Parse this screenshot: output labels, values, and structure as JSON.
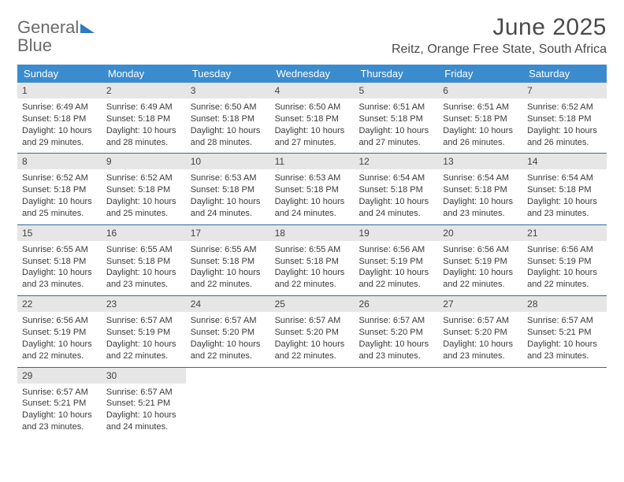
{
  "logo": {
    "text1": "General",
    "text2": "Blue"
  },
  "header": {
    "month_title": "June 2025",
    "location": "Reitz, Orange Free State, South Africa"
  },
  "colors": {
    "header_bg": "#3b8bcf",
    "header_fg": "#ffffff",
    "daynum_bg": "#e6e6e6",
    "daynum_fg": "#444444",
    "week_divider": "#2e6ba3",
    "body_text": "#3a3a3a",
    "title_text": "#4a4a4a",
    "logo_gray": "#6b6b6b",
    "logo_blue": "#2e7cc2"
  },
  "typography": {
    "month_title_size": 30,
    "location_size": 16,
    "dow_size": 13,
    "daynum_size": 12,
    "body_size": 11
  },
  "calendar": {
    "days_of_week": [
      "Sunday",
      "Monday",
      "Tuesday",
      "Wednesday",
      "Thursday",
      "Friday",
      "Saturday"
    ],
    "weeks": [
      [
        {
          "n": "1",
          "sunrise": "Sunrise: 6:49 AM",
          "sunset": "Sunset: 5:18 PM",
          "daylight": "Daylight: 10 hours and 29 minutes."
        },
        {
          "n": "2",
          "sunrise": "Sunrise: 6:49 AM",
          "sunset": "Sunset: 5:18 PM",
          "daylight": "Daylight: 10 hours and 28 minutes."
        },
        {
          "n": "3",
          "sunrise": "Sunrise: 6:50 AM",
          "sunset": "Sunset: 5:18 PM",
          "daylight": "Daylight: 10 hours and 28 minutes."
        },
        {
          "n": "4",
          "sunrise": "Sunrise: 6:50 AM",
          "sunset": "Sunset: 5:18 PM",
          "daylight": "Daylight: 10 hours and 27 minutes."
        },
        {
          "n": "5",
          "sunrise": "Sunrise: 6:51 AM",
          "sunset": "Sunset: 5:18 PM",
          "daylight": "Daylight: 10 hours and 27 minutes."
        },
        {
          "n": "6",
          "sunrise": "Sunrise: 6:51 AM",
          "sunset": "Sunset: 5:18 PM",
          "daylight": "Daylight: 10 hours and 26 minutes."
        },
        {
          "n": "7",
          "sunrise": "Sunrise: 6:52 AM",
          "sunset": "Sunset: 5:18 PM",
          "daylight": "Daylight: 10 hours and 26 minutes."
        }
      ],
      [
        {
          "n": "8",
          "sunrise": "Sunrise: 6:52 AM",
          "sunset": "Sunset: 5:18 PM",
          "daylight": "Daylight: 10 hours and 25 minutes."
        },
        {
          "n": "9",
          "sunrise": "Sunrise: 6:52 AM",
          "sunset": "Sunset: 5:18 PM",
          "daylight": "Daylight: 10 hours and 25 minutes."
        },
        {
          "n": "10",
          "sunrise": "Sunrise: 6:53 AM",
          "sunset": "Sunset: 5:18 PM",
          "daylight": "Daylight: 10 hours and 24 minutes."
        },
        {
          "n": "11",
          "sunrise": "Sunrise: 6:53 AM",
          "sunset": "Sunset: 5:18 PM",
          "daylight": "Daylight: 10 hours and 24 minutes."
        },
        {
          "n": "12",
          "sunrise": "Sunrise: 6:54 AM",
          "sunset": "Sunset: 5:18 PM",
          "daylight": "Daylight: 10 hours and 24 minutes."
        },
        {
          "n": "13",
          "sunrise": "Sunrise: 6:54 AM",
          "sunset": "Sunset: 5:18 PM",
          "daylight": "Daylight: 10 hours and 23 minutes."
        },
        {
          "n": "14",
          "sunrise": "Sunrise: 6:54 AM",
          "sunset": "Sunset: 5:18 PM",
          "daylight": "Daylight: 10 hours and 23 minutes."
        }
      ],
      [
        {
          "n": "15",
          "sunrise": "Sunrise: 6:55 AM",
          "sunset": "Sunset: 5:18 PM",
          "daylight": "Daylight: 10 hours and 23 minutes."
        },
        {
          "n": "16",
          "sunrise": "Sunrise: 6:55 AM",
          "sunset": "Sunset: 5:18 PM",
          "daylight": "Daylight: 10 hours and 23 minutes."
        },
        {
          "n": "17",
          "sunrise": "Sunrise: 6:55 AM",
          "sunset": "Sunset: 5:18 PM",
          "daylight": "Daylight: 10 hours and 22 minutes."
        },
        {
          "n": "18",
          "sunrise": "Sunrise: 6:55 AM",
          "sunset": "Sunset: 5:18 PM",
          "daylight": "Daylight: 10 hours and 22 minutes."
        },
        {
          "n": "19",
          "sunrise": "Sunrise: 6:56 AM",
          "sunset": "Sunset: 5:19 PM",
          "daylight": "Daylight: 10 hours and 22 minutes."
        },
        {
          "n": "20",
          "sunrise": "Sunrise: 6:56 AM",
          "sunset": "Sunset: 5:19 PM",
          "daylight": "Daylight: 10 hours and 22 minutes."
        },
        {
          "n": "21",
          "sunrise": "Sunrise: 6:56 AM",
          "sunset": "Sunset: 5:19 PM",
          "daylight": "Daylight: 10 hours and 22 minutes."
        }
      ],
      [
        {
          "n": "22",
          "sunrise": "Sunrise: 6:56 AM",
          "sunset": "Sunset: 5:19 PM",
          "daylight": "Daylight: 10 hours and 22 minutes."
        },
        {
          "n": "23",
          "sunrise": "Sunrise: 6:57 AM",
          "sunset": "Sunset: 5:19 PM",
          "daylight": "Daylight: 10 hours and 22 minutes."
        },
        {
          "n": "24",
          "sunrise": "Sunrise: 6:57 AM",
          "sunset": "Sunset: 5:20 PM",
          "daylight": "Daylight: 10 hours and 22 minutes."
        },
        {
          "n": "25",
          "sunrise": "Sunrise: 6:57 AM",
          "sunset": "Sunset: 5:20 PM",
          "daylight": "Daylight: 10 hours and 22 minutes."
        },
        {
          "n": "26",
          "sunrise": "Sunrise: 6:57 AM",
          "sunset": "Sunset: 5:20 PM",
          "daylight": "Daylight: 10 hours and 23 minutes."
        },
        {
          "n": "27",
          "sunrise": "Sunrise: 6:57 AM",
          "sunset": "Sunset: 5:20 PM",
          "daylight": "Daylight: 10 hours and 23 minutes."
        },
        {
          "n": "28",
          "sunrise": "Sunrise: 6:57 AM",
          "sunset": "Sunset: 5:21 PM",
          "daylight": "Daylight: 10 hours and 23 minutes."
        }
      ],
      [
        {
          "n": "29",
          "sunrise": "Sunrise: 6:57 AM",
          "sunset": "Sunset: 5:21 PM",
          "daylight": "Daylight: 10 hours and 23 minutes."
        },
        {
          "n": "30",
          "sunrise": "Sunrise: 6:57 AM",
          "sunset": "Sunset: 5:21 PM",
          "daylight": "Daylight: 10 hours and 24 minutes."
        },
        null,
        null,
        null,
        null,
        null
      ]
    ]
  }
}
